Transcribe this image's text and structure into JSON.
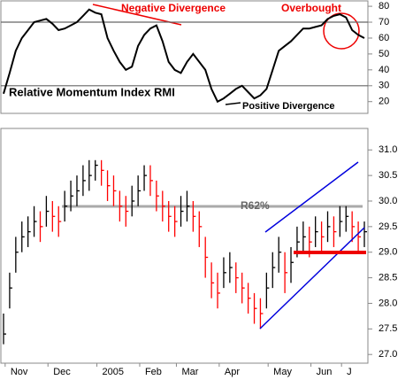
{
  "chart_data": [
    {
      "type": "line",
      "title": "Relative Momentum Index RMI",
      "annotations": [
        "Negative Divergence",
        "Overbought",
        "Positive Divergence"
      ],
      "color": "#000000",
      "values": [
        25,
        38,
        52,
        60,
        65,
        70,
        71,
        72,
        69,
        65,
        66,
        68,
        70,
        74,
        78,
        76,
        75,
        60,
        52,
        45,
        40,
        42,
        55,
        62,
        66,
        68,
        58,
        45,
        40,
        38,
        45,
        50,
        45,
        40,
        28,
        20,
        22,
        25,
        28,
        30,
        26,
        22,
        24,
        28,
        40,
        52,
        55,
        58,
        62,
        66,
        66,
        67,
        68,
        72,
        74,
        75,
        73,
        65,
        62,
        60
      ],
      "ylim": [
        12.6,
        83.4
      ],
      "yticks": [
        20,
        30,
        40,
        50,
        60,
        70,
        80
      ],
      "reference_lines": [
        70,
        30
      ]
    },
    {
      "type": "ohlc",
      "annotations": [
        "R62%"
      ],
      "up_color": "#000000",
      "down_color": "#ff0000",
      "categories": [
        null,
        null,
        "Nov",
        null,
        null,
        null,
        null,
        null,
        null,
        "Dec",
        null,
        null,
        null,
        null,
        null,
        null,
        null,
        "2005",
        null,
        null,
        null,
        null,
        null,
        null,
        "Feb",
        null,
        null,
        null,
        null,
        null,
        "Mar",
        null,
        null,
        null,
        null,
        null,
        null,
        "Apr",
        null,
        null,
        null,
        null,
        null,
        null,
        null,
        "May",
        null,
        null,
        null,
        null,
        null,
        null,
        "Jun",
        null,
        null,
        null,
        null,
        "J",
        null,
        null
      ],
      "high": [
        27.8,
        28.6,
        29.3,
        29.6,
        29.7,
        29.9,
        29.8,
        30.1,
        30.0,
        29.9,
        30.2,
        30.4,
        30.5,
        30.7,
        30.8,
        30.8,
        30.8,
        30.6,
        30.5,
        30.2,
        30.1,
        30.3,
        30.5,
        30.7,
        30.7,
        30.4,
        30.2,
        30.0,
        29.9,
        30.1,
        30.2,
        30.0,
        29.8,
        29.3,
        28.8,
        28.6,
        28.9,
        29.0,
        28.8,
        28.6,
        28.4,
        28.2,
        28.1,
        28.6,
        29.0,
        29.3,
        29.0,
        29.1,
        29.5,
        29.6,
        29.5,
        29.7,
        29.6,
        29.8,
        29.7,
        29.9,
        29.9,
        29.8,
        29.6,
        29.6
      ],
      "low": [
        27.2,
        27.9,
        28.6,
        29.0,
        29.1,
        29.3,
        29.2,
        29.5,
        29.4,
        29.3,
        29.6,
        29.8,
        29.9,
        30.1,
        30.2,
        30.4,
        30.3,
        30.0,
        29.9,
        29.6,
        29.5,
        29.7,
        29.9,
        30.2,
        30.1,
        29.8,
        29.6,
        29.4,
        29.3,
        29.5,
        29.6,
        29.4,
        29.1,
        28.5,
        28.1,
        27.9,
        28.3,
        28.4,
        28.2,
        28.0,
        27.8,
        27.6,
        27.5,
        27.9,
        28.3,
        28.6,
        28.2,
        28.4,
        28.9,
        29.0,
        28.9,
        29.1,
        29.0,
        29.2,
        29.1,
        29.3,
        29.4,
        29.2,
        29.0,
        29.1
      ],
      "close": [
        27.4,
        28.3,
        29.0,
        29.3,
        29.4,
        29.6,
        29.5,
        29.8,
        29.7,
        29.6,
        29.9,
        30.1,
        30.2,
        30.4,
        30.5,
        30.7,
        30.6,
        30.3,
        30.2,
        29.9,
        29.8,
        30.0,
        30.2,
        30.5,
        30.4,
        30.1,
        29.9,
        29.7,
        29.6,
        29.8,
        29.9,
        29.7,
        29.5,
        28.9,
        28.4,
        28.2,
        28.6,
        28.7,
        28.5,
        28.3,
        28.1,
        27.9,
        27.8,
        28.3,
        28.7,
        29.0,
        28.6,
        28.8,
        29.2,
        29.3,
        29.2,
        29.4,
        29.3,
        29.5,
        29.4,
        29.6,
        29.7,
        29.5,
        29.3,
        29.4
      ],
      "ylim": [
        26.83,
        31.42
      ],
      "yticks": [
        {
          "value": 27,
          "label": "27.0"
        },
        27.5,
        {
          "value": 28,
          "label": "28.0"
        },
        28.5,
        {
          "value": 29,
          "label": "29.0"
        },
        29.5,
        {
          "value": 30,
          "label": "30.0"
        },
        30.5,
        {
          "value": 31,
          "label": "31.0"
        }
      ]
    }
  ]
}
